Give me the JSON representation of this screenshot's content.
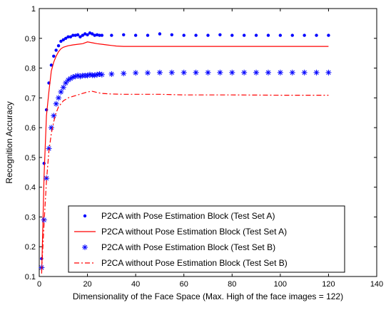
{
  "chart_data": {
    "type": "line",
    "title": "",
    "xlabel": "Dimensionality of the Face Space (Max. High of the face images = 122)",
    "ylabel": "Recognition Accuracy",
    "xlim": [
      0,
      140
    ],
    "ylim": [
      0.1,
      1.0
    ],
    "x_ticks": [
      "0",
      "20",
      "40",
      "60",
      "80",
      "100",
      "120",
      "140"
    ],
    "y_ticks": [
      "0.1",
      "0.2",
      "0.3",
      "0.4",
      "0.5",
      "0.6",
      "0.7",
      "0.8",
      "0.9",
      "1"
    ],
    "grid": false,
    "legend_position": "bottom-center",
    "series": [
      {
        "name": "P2CA with Pose Estimation Block (Test Set A)",
        "style": "dots",
        "color": "#0000ff",
        "x": [
          1,
          2,
          3,
          4,
          5,
          6,
          7,
          8,
          9,
          10,
          11,
          12,
          13,
          14,
          15,
          16,
          17,
          18,
          19,
          20,
          21,
          22,
          23,
          24,
          25,
          26,
          30,
          35,
          40,
          45,
          50,
          55,
          60,
          65,
          70,
          75,
          80,
          85,
          90,
          95,
          100,
          105,
          110,
          115,
          120
        ],
        "y": [
          0.16,
          0.48,
          0.66,
          0.75,
          0.81,
          0.84,
          0.86,
          0.875,
          0.89,
          0.895,
          0.9,
          0.905,
          0.905,
          0.91,
          0.91,
          0.912,
          0.905,
          0.91,
          0.915,
          0.912,
          0.918,
          0.915,
          0.91,
          0.912,
          0.91,
          0.91,
          0.91,
          0.912,
          0.91,
          0.91,
          0.915,
          0.912,
          0.91,
          0.91,
          0.91,
          0.912,
          0.91,
          0.91,
          0.91,
          0.91,
          0.91,
          0.91,
          0.91,
          0.91,
          0.91
        ]
      },
      {
        "name": "P2CA without Pose Estimation Block (Test Set A)",
        "style": "solid",
        "color": "#ff0000",
        "x": [
          1,
          2,
          3,
          4,
          5,
          6,
          7,
          8,
          9,
          10,
          12,
          14,
          16,
          18,
          20,
          22,
          24,
          26,
          28,
          30,
          32,
          35,
          40,
          50,
          60,
          80,
          100,
          120
        ],
        "y": [
          0.11,
          0.44,
          0.64,
          0.72,
          0.79,
          0.82,
          0.84,
          0.855,
          0.865,
          0.87,
          0.875,
          0.878,
          0.88,
          0.882,
          0.888,
          0.885,
          0.882,
          0.88,
          0.878,
          0.876,
          0.874,
          0.873,
          0.873,
          0.873,
          0.873,
          0.873,
          0.873,
          0.873
        ]
      },
      {
        "name": "P2CA with Pose Estimation Block (Test Set B)",
        "style": "asterisk",
        "color": "#0000ff",
        "x": [
          1,
          2,
          3,
          4,
          5,
          6,
          7,
          8,
          9,
          10,
          11,
          12,
          13,
          14,
          15,
          16,
          17,
          18,
          19,
          20,
          21,
          22,
          23,
          24,
          25,
          26,
          30,
          35,
          40,
          45,
          50,
          55,
          60,
          65,
          70,
          75,
          80,
          85,
          90,
          95,
          100,
          105,
          110,
          115,
          120
        ],
        "y": [
          0.13,
          0.29,
          0.43,
          0.53,
          0.6,
          0.64,
          0.68,
          0.7,
          0.72,
          0.735,
          0.75,
          0.76,
          0.765,
          0.77,
          0.772,
          0.775,
          0.772,
          0.775,
          0.775,
          0.775,
          0.778,
          0.776,
          0.776,
          0.778,
          0.78,
          0.778,
          0.78,
          0.782,
          0.784,
          0.784,
          0.785,
          0.785,
          0.785,
          0.785,
          0.785,
          0.785,
          0.785,
          0.785,
          0.785,
          0.785,
          0.785,
          0.785,
          0.785,
          0.785,
          0.785
        ]
      },
      {
        "name": "P2CA without Pose Estimation Block (Test Set B)",
        "style": "dashdot",
        "color": "#ff0000",
        "x": [
          1,
          2,
          3,
          4,
          5,
          6,
          7,
          8,
          9,
          10,
          12,
          14,
          16,
          18,
          20,
          22,
          24,
          26,
          28,
          30,
          35,
          40,
          50,
          60,
          80,
          100,
          120
        ],
        "y": [
          0.12,
          0.28,
          0.42,
          0.52,
          0.58,
          0.62,
          0.65,
          0.67,
          0.68,
          0.69,
          0.7,
          0.705,
          0.71,
          0.715,
          0.72,
          0.722,
          0.718,
          0.715,
          0.714,
          0.713,
          0.712,
          0.712,
          0.712,
          0.71,
          0.71,
          0.709,
          0.709
        ]
      }
    ]
  }
}
